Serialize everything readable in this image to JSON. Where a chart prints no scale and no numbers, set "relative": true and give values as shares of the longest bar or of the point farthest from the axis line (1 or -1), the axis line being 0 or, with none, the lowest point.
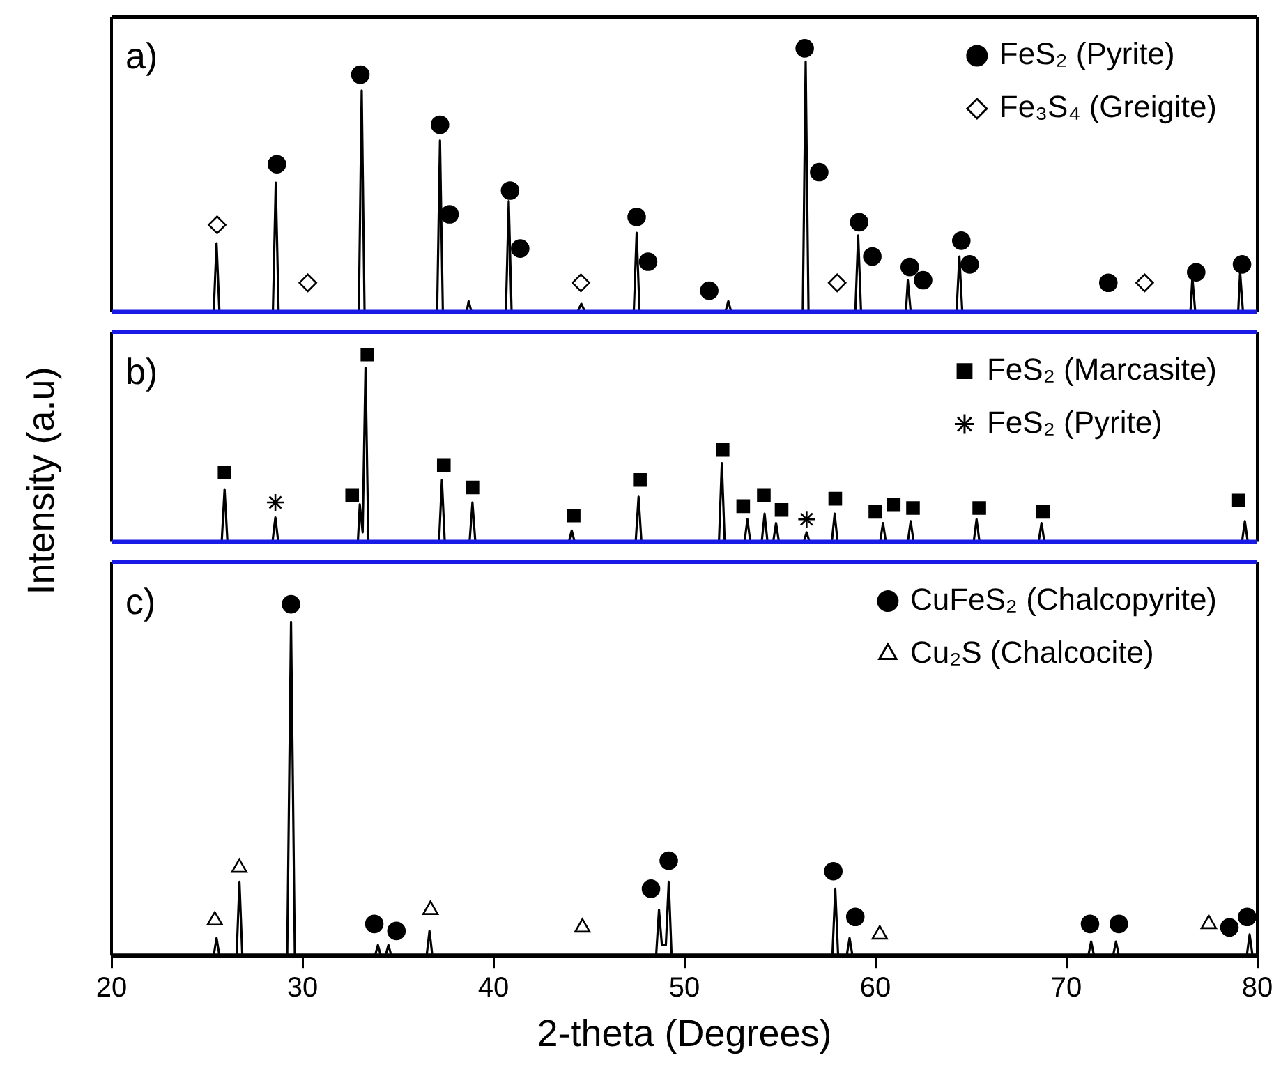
{
  "chart_data": [
    {
      "type": "line",
      "title": "a)",
      "relative": true,
      "xlim": [
        20,
        80
      ],
      "xticks": [
        20,
        30,
        40,
        50,
        60,
        70,
        80
      ],
      "tick_labels": false,
      "legend": "top right",
      "series": [
        {
          "color": "#000000",
          "x": [
            20,
            25.35,
            25.5,
            25.65,
            28.45,
            28.6,
            28.75,
            32.95,
            33.1,
            33.25,
            37.05,
            37.2,
            37.35,
            38.6,
            38.7,
            38.85,
            40.65,
            40.8,
            40.95,
            44.4,
            44.6,
            44.8,
            47.35,
            47.5,
            47.65,
            52.15,
            52.3,
            52.45,
            56.2,
            56.35,
            56.5,
            58.95,
            59.1,
            59.25,
            61.6,
            61.7,
            61.85,
            64.25,
            64.4,
            64.55,
            76.5,
            76.6,
            76.75,
            79.0,
            79.1,
            79.25,
            80
          ],
          "values": [
            0,
            0,
            0.26,
            0,
            0,
            0.49,
            0,
            0,
            0.84,
            0,
            0,
            0.65,
            0,
            0,
            0.04,
            0,
            0,
            0.42,
            0,
            0,
            0.03,
            0,
            0,
            0.3,
            0,
            0,
            0.04,
            0,
            0,
            0.95,
            0,
            0,
            0.29,
            0,
            0,
            0.12,
            0,
            0,
            0.21,
            0,
            0,
            0.13,
            0,
            0,
            0.15,
            0,
            0
          ]
        },
        {
          "type": "scatter",
          "name": "FeS₂ (Pyrite)",
          "marker": "circle",
          "color": "#000000",
          "x": [
            28.66,
            33.03,
            37.2,
            37.7,
            40.87,
            41.4,
            47.5,
            48.1,
            51.3,
            56.3,
            57.06,
            59.15,
            59.84,
            61.8,
            62.5,
            64.5,
            64.94,
            72.2,
            76.8,
            79.2
          ],
          "values": [
            0.56,
            0.9,
            0.71,
            0.37,
            0.46,
            0.24,
            0.36,
            0.19,
            0.08,
            1,
            0.53,
            0.34,
            0.21,
            0.17,
            0.12,
            0.27,
            0.18,
            0.11,
            0.15,
            0.18
          ]
        },
        {
          "type": "scatter",
          "name": "Fe₃S₄ (Greigite)",
          "marker": "diamond",
          "color": "#000000",
          "x": [
            25.53,
            30.28,
            44.58,
            58.0,
            74.1
          ],
          "values": [
            0.33,
            0.11,
            0.11,
            0.11,
            0.11
          ]
        }
      ]
    },
    {
      "type": "line",
      "title": "b)",
      "ylabel": "Intensity (a.u)",
      "relative": true,
      "xlim": [
        20,
        80
      ],
      "xticks": [
        20,
        30,
        40,
        50,
        60,
        70,
        80
      ],
      "tick_labels": false,
      "legend": "top right",
      "series": [
        {
          "color": "#000000",
          "x": [
            20,
            25.77,
            25.92,
            26.07,
            28.43,
            28.58,
            28.73,
            32.9,
            33.0,
            33.15,
            33.3,
            33.45,
            37.15,
            37.3,
            37.45,
            38.75,
            38.9,
            39.05,
            43.95,
            44.1,
            44.25,
            47.45,
            47.6,
            47.75,
            51.81,
            51.96,
            52.11,
            53.15,
            53.3,
            53.45,
            54.05,
            54.2,
            54.35,
            54.65,
            54.8,
            54.95,
            56.25,
            56.4,
            56.55,
            57.72,
            57.87,
            58.02,
            60.25,
            60.4,
            60.55,
            61.7,
            61.85,
            62.0,
            65.15,
            65.3,
            65.45,
            68.55,
            68.7,
            68.85,
            79.2,
            79.35,
            79.5,
            80
          ],
          "values": [
            0,
            0,
            0.28,
            0,
            0,
            0.13,
            0,
            0,
            0.2,
            0.05,
            0.93,
            0,
            0,
            0.33,
            0,
            0,
            0.21,
            0,
            0,
            0.06,
            0,
            0,
            0.24,
            0,
            0,
            0.42,
            0,
            0,
            0.12,
            0,
            0,
            0.15,
            0,
            0,
            0.1,
            0,
            0,
            0.05,
            0,
            0,
            0.15,
            0,
            0,
            0.1,
            0,
            0,
            0.11,
            0,
            0,
            0.12,
            0,
            0,
            0.1,
            0,
            0,
            0.11,
            0,
            0
          ]
        },
        {
          "type": "scatter",
          "name": "FeS₂ (Marcasite)",
          "marker": "square",
          "color": "#000000",
          "x": [
            25.92,
            32.6,
            33.4,
            37.4,
            38.9,
            44.2,
            47.67,
            52.0,
            53.08,
            54.16,
            55.09,
            57.9,
            60.0,
            60.96,
            61.97,
            65.44,
            68.77,
            79.0
          ],
          "values": [
            0.37,
            0.25,
            1,
            0.41,
            0.29,
            0.14,
            0.33,
            0.49,
            0.19,
            0.25,
            0.17,
            0.23,
            0.16,
            0.2,
            0.18,
            0.18,
            0.16,
            0.22
          ]
        },
        {
          "type": "scatter",
          "name": "FeS₂ (Pyrite)",
          "marker": "cross",
          "color": "#000000",
          "x": [
            28.58,
            56.4
          ],
          "values": [
            0.21,
            0.12
          ]
        }
      ]
    },
    {
      "type": "line",
      "title": "c)",
      "xlabel": "2-theta (Degrees)",
      "relative": true,
      "xlim": [
        20,
        80
      ],
      "xticks": [
        20,
        30,
        40,
        50,
        60,
        70,
        80
      ],
      "tick_labels": "x",
      "legend": "top right",
      "series": [
        {
          "color": "#000000",
          "x": [
            20,
            25.35,
            25.5,
            25.65,
            26.55,
            26.7,
            26.85,
            29.2,
            29.4,
            29.6,
            33.8,
            33.95,
            34.1,
            34.35,
            34.5,
            34.65,
            36.5,
            36.65,
            36.8,
            48.52,
            48.67,
            48.82,
            49.03,
            49.18,
            49.33,
            57.75,
            57.9,
            58.05,
            58.5,
            58.65,
            58.8,
            71.15,
            71.3,
            71.45,
            72.45,
            72.6,
            72.75,
            79.45,
            79.6,
            79.75,
            80
          ],
          "values": [
            0,
            0,
            0.05,
            0,
            0,
            0.21,
            0,
            0,
            0.95,
            0,
            0,
            0.03,
            0,
            0,
            0.03,
            0,
            0,
            0.07,
            0,
            0,
            0.13,
            0.03,
            0.03,
            0.21,
            0,
            0,
            0.19,
            0,
            0,
            0.05,
            0,
            0,
            0.04,
            0,
            0,
            0.04,
            0,
            0,
            0.06,
            0,
            0
          ]
        },
        {
          "type": "scatter",
          "name": "CuFeS₂ (Chalcopyrite)",
          "marker": "circle",
          "color": "#000000",
          "x": [
            29.4,
            33.76,
            34.92,
            48.25,
            49.18,
            57.8,
            58.95,
            71.24,
            72.75,
            78.54,
            79.47
          ],
          "values": [
            1,
            0.09,
            0.07,
            0.19,
            0.27,
            0.24,
            0.11,
            0.09,
            0.09,
            0.08,
            0.11
          ]
        },
        {
          "type": "scatter",
          "name": "Cu₂S (Chalcocite)",
          "marker": "triangle",
          "color": "#000000",
          "x": [
            25.41,
            26.69,
            36.7,
            44.66,
            60.23,
            77.46
          ],
          "values": [
            0.1,
            0.25,
            0.13,
            0.08,
            0.06,
            0.09
          ]
        }
      ]
    }
  ]
}
